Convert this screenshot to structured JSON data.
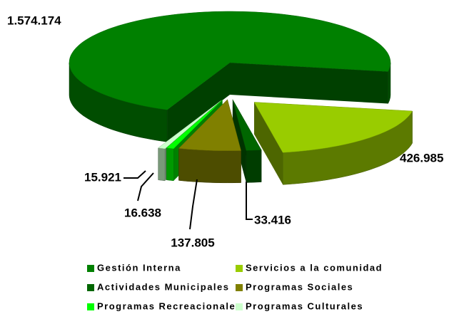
{
  "chart_data": {
    "type": "pie3d",
    "categories": [
      "Gestión Interna",
      "Servicios a la comunidad",
      "Actividades Municipales",
      "Programas Sociales",
      "Programas Recreacionales",
      "Programas Culturales"
    ],
    "values": [
      1574174,
      426985,
      33416,
      137805,
      16638,
      15921
    ],
    "value_labels": [
      "1.574.174",
      "426.985",
      "33.416",
      "137.805",
      "16.638",
      "15.921"
    ],
    "colors": [
      "#008000",
      "#99cc00",
      "#006600",
      "#808000",
      "#00ff00",
      "#ccffcc"
    ]
  }
}
